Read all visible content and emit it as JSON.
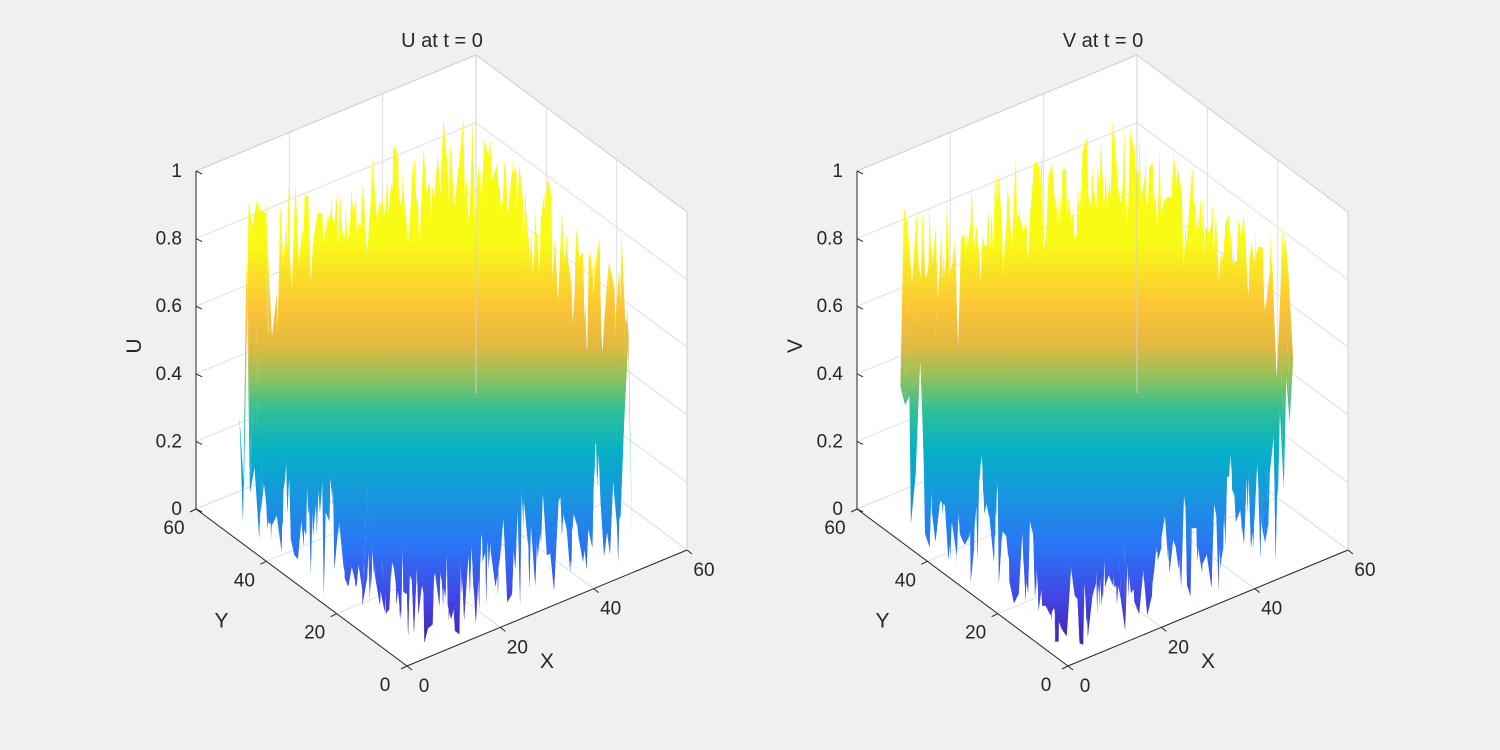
{
  "figure": {
    "background": "#f0f0f0",
    "colormap": "parula"
  },
  "chart_data": [
    {
      "type": "surface",
      "title": "U at t = 0",
      "xlabel": "X",
      "ylabel": "Y",
      "zlabel": "U",
      "xlim": [
        0,
        60
      ],
      "ylim": [
        0,
        60
      ],
      "zlim": [
        0,
        1
      ],
      "xticks": [
        "0",
        "20",
        "40",
        "60"
      ],
      "yticks": [
        "0",
        "20",
        "40",
        "60"
      ],
      "zticks": [
        "0",
        "0.2",
        "0.4",
        "0.6",
        "0.8",
        "1"
      ],
      "grid": true,
      "view": "3-D, default azimuth -37.5, elevation 30",
      "values_description": "uniform random noise in [0, 1] on a ~50x50 grid",
      "z_range": [
        0,
        1
      ]
    },
    {
      "type": "surface",
      "title": "V at t = 0",
      "xlabel": "X",
      "ylabel": "Y",
      "zlabel": "V",
      "xlim": [
        0,
        60
      ],
      "ylim": [
        0,
        60
      ],
      "zlim": [
        0,
        1
      ],
      "xticks": [
        "0",
        "20",
        "40",
        "60"
      ],
      "yticks": [
        "0",
        "20",
        "40",
        "60"
      ],
      "zticks": [
        "0",
        "0.2",
        "0.4",
        "0.6",
        "0.8",
        "1"
      ],
      "grid": true,
      "view": "3-D, default azimuth -37.5, elevation 30",
      "values_description": "uniform random noise in [0, 1] on a ~50x50 grid",
      "z_range": [
        0,
        1
      ]
    }
  ]
}
